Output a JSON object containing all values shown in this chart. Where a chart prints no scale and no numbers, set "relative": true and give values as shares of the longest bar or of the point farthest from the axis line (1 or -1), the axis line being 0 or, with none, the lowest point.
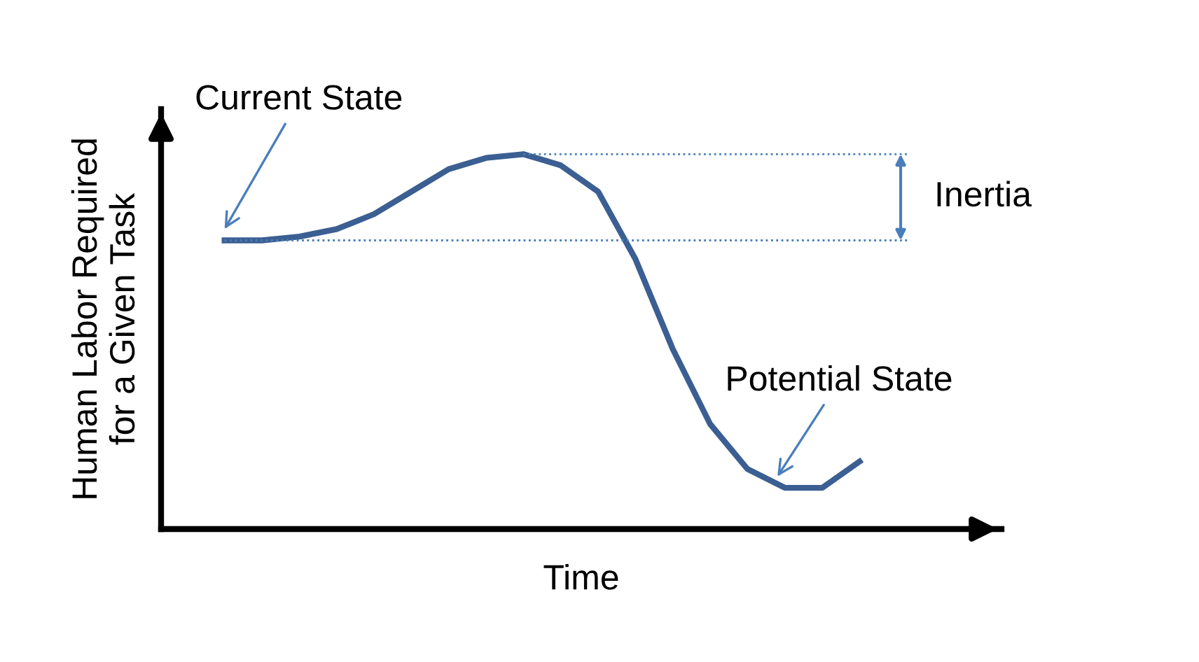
{
  "chart_data": {
    "type": "line",
    "relative": true,
    "xlabel": "Time",
    "ylabel": "Human Labor Required\nfor a Given Task",
    "categories": [
      null,
      null,
      null,
      null,
      null,
      null,
      null,
      null,
      null,
      null,
      null,
      null,
      null,
      null,
      null,
      null,
      null,
      null
    ],
    "series": [
      {
        "color": "#3b5f92",
        "values": [
          0.77,
          0.77,
          0.78,
          0.8,
          0.84,
          0.9,
          0.96,
          0.99,
          1.0,
          0.97,
          0.9,
          0.72,
          0.48,
          0.28,
          0.16,
          0.11,
          0.11,
          0.18
        ]
      }
    ],
    "ref_lines": [
      {
        "axis": "y",
        "value": 1.0,
        "color": "#4a7ebb",
        "line_style": "dotted"
      },
      {
        "axis": "y",
        "value": 0.77,
        "color": "#4a7ebb",
        "line_style": "dotted"
      }
    ],
    "annotations": [
      "Current State",
      "Inertia",
      "Potential State"
    ],
    "legend": false,
    "marker": "none",
    "line_style": "solid"
  }
}
